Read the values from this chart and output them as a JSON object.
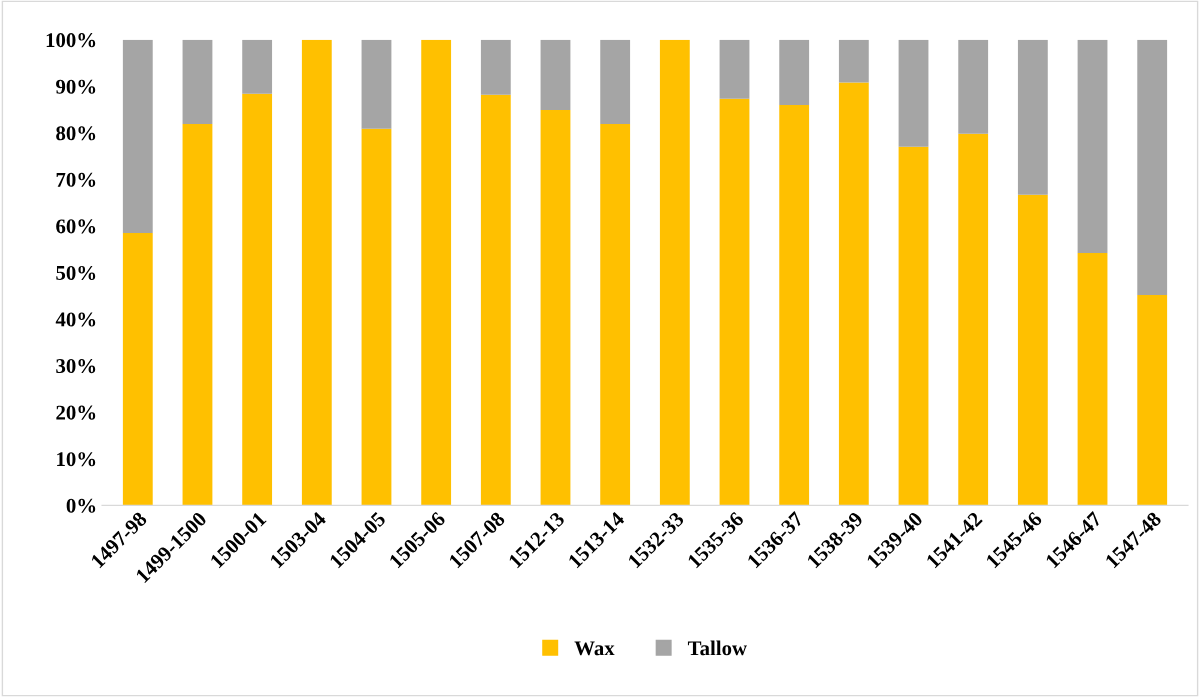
{
  "chart_data": {
    "type": "bar",
    "stacked": true,
    "categories": [
      "1497-98",
      "1499-1500",
      "1500-01",
      "1503-04",
      "1504-05",
      "1505-06",
      "1507-08",
      "1512-13",
      "1513-14",
      "1532-33",
      "1535-36",
      "1536-37",
      "1538-39",
      "1539-40",
      "1541-42",
      "1545-46",
      "1546-47",
      "1547-48"
    ],
    "series": [
      {
        "name": "Wax",
        "color": "#ffc000",
        "values": [
          58.5,
          81.9,
          88.4,
          100,
          80.9,
          100,
          88.2,
          84.9,
          81.9,
          100,
          87.3,
          86.0,
          90.8,
          77.0,
          79.8,
          66.7,
          54.2,
          45.2
        ]
      },
      {
        "name": "Tallow",
        "color": "#a5a5a5",
        "values": [
          41.5,
          18.1,
          11.6,
          0,
          19.1,
          0,
          11.8,
          15.1,
          18.1,
          0,
          12.7,
          14.0,
          9.2,
          23.0,
          20.2,
          33.3,
          45.8,
          54.8
        ]
      }
    ],
    "ylim": [
      0,
      100
    ],
    "yticks": [
      {
        "value": 0,
        "label": "0%"
      },
      {
        "value": 10,
        "label": "10%"
      },
      {
        "value": 20,
        "label": "20%"
      },
      {
        "value": 30,
        "label": "30%"
      },
      {
        "value": 40,
        "label": "40%"
      },
      {
        "value": 50,
        "label": "50%"
      },
      {
        "value": 60,
        "label": "60%"
      },
      {
        "value": 70,
        "label": "70%"
      },
      {
        "value": 80,
        "label": "80%"
      },
      {
        "value": 90,
        "label": "90%"
      },
      {
        "value": 100,
        "label": "100%"
      }
    ],
    "grid": false,
    "legend": "bottom"
  }
}
